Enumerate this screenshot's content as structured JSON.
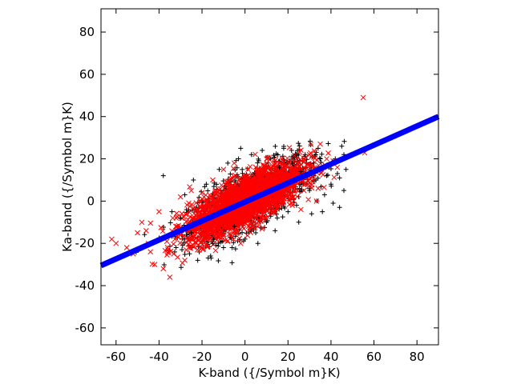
{
  "chart_data": {
    "type": "scatter",
    "title": "",
    "xlabel": "K-band ({/Symbol m}K)",
    "ylabel": "Ka-band ({/Symbol m}K)",
    "xlim": [
      -67,
      90
    ],
    "ylim": [
      -68,
      91
    ],
    "xticks": [
      -60,
      -40,
      -20,
      0,
      20,
      40,
      60,
      80
    ],
    "yticks": [
      -60,
      -40,
      -20,
      0,
      20,
      40,
      60,
      80
    ],
    "grid": false,
    "legend": "none",
    "series": [
      {
        "marker": "plus",
        "color": "#000000",
        "points": [
          [
            -38,
            12
          ],
          [
            -30,
            -8
          ],
          [
            -28,
            3
          ],
          [
            -25,
            -15
          ],
          [
            -22,
            -28
          ],
          [
            -18,
            8
          ],
          [
            -15,
            -20
          ],
          [
            -12,
            15
          ],
          [
            -10,
            -22
          ],
          [
            -8,
            18
          ],
          [
            -5,
            -12
          ],
          [
            -3,
            20
          ],
          [
            0,
            -18
          ],
          [
            3,
            22
          ],
          [
            5,
            -15
          ],
          [
            8,
            24
          ],
          [
            10,
            -10
          ],
          [
            12,
            20
          ],
          [
            15,
            -8
          ],
          [
            18,
            25
          ],
          [
            20,
            -5
          ],
          [
            22,
            18
          ],
          [
            25,
            -10
          ],
          [
            28,
            22
          ],
          [
            30,
            5
          ],
          [
            32,
            18
          ],
          [
            34,
            25
          ],
          [
            36,
            -5
          ],
          [
            38,
            12
          ],
          [
            40,
            8
          ],
          [
            42,
            20
          ],
          [
            44,
            -3
          ],
          [
            45,
            26
          ],
          [
            46,
            5
          ],
          [
            47,
            15
          ],
          [
            -2,
            25
          ],
          [
            -6,
            -22
          ],
          [
            14,
            -14
          ],
          [
            24,
            -2
          ],
          [
            33,
            10
          ],
          [
            37,
            3
          ],
          [
            41,
            -1
          ],
          [
            43,
            13
          ],
          [
            26,
            14
          ],
          [
            16,
            16
          ],
          [
            6,
            -20
          ],
          [
            -16,
            -26
          ],
          [
            -24,
            10
          ],
          [
            -34,
            -5
          ],
          [
            31,
            -6
          ],
          [
            35,
            20
          ],
          [
            39,
            16
          ],
          [
            44,
            11
          ],
          [
            46,
            22
          ]
        ]
      },
      {
        "marker": "x",
        "color": "#ff0000",
        "points": [
          [
            -62,
            -18
          ],
          [
            -60,
            -20
          ],
          [
            -55,
            -22
          ],
          [
            -52,
            -25
          ],
          [
            -50,
            -15
          ],
          [
            -48,
            -10
          ],
          [
            -45,
            -20
          ],
          [
            -42,
            -30
          ],
          [
            -40,
            -5
          ],
          [
            -38,
            -32
          ],
          [
            -35,
            -36
          ],
          [
            -33,
            -15
          ],
          [
            -30,
            2
          ],
          [
            -28,
            -28
          ],
          [
            -25,
            5
          ],
          [
            -22,
            -10
          ],
          [
            -20,
            -22
          ],
          [
            -18,
            0
          ],
          [
            -15,
            10
          ],
          [
            -12,
            -15
          ],
          [
            -10,
            15
          ],
          [
            -8,
            -5
          ],
          [
            -5,
            18
          ],
          [
            -3,
            -10
          ],
          [
            0,
            12
          ],
          [
            2,
            -8
          ],
          [
            5,
            16
          ],
          [
            8,
            -2
          ],
          [
            10,
            20
          ],
          [
            12,
            5
          ],
          [
            15,
            -3
          ],
          [
            18,
            15
          ],
          [
            20,
            10
          ],
          [
            22,
            -2
          ],
          [
            25,
            18
          ],
          [
            28,
            8
          ],
          [
            30,
            22
          ],
          [
            33,
            15
          ],
          [
            35,
            27
          ],
          [
            38,
            20
          ],
          [
            41,
            19
          ],
          [
            55,
            49
          ],
          [
            -44,
            -24
          ],
          [
            -36,
            -22
          ],
          [
            -26,
            -18
          ],
          [
            -14,
            -6
          ],
          [
            -6,
            4
          ],
          [
            4,
            6
          ],
          [
            14,
            10
          ],
          [
            24,
            12
          ],
          [
            -32,
            -8
          ],
          [
            -16,
            -14
          ],
          [
            16,
            2
          ],
          [
            6,
            -12
          ],
          [
            -2,
            -20
          ],
          [
            26,
            -4
          ],
          [
            34,
            6
          ],
          [
            -46,
            -14
          ],
          [
            -20,
            4
          ],
          [
            0,
            -2
          ]
        ]
      }
    ],
    "fit_line": {
      "color": "#0000ff",
      "points": [
        [
          -67,
          -30.5
        ],
        [
          90,
          40
        ]
      ]
    }
  }
}
